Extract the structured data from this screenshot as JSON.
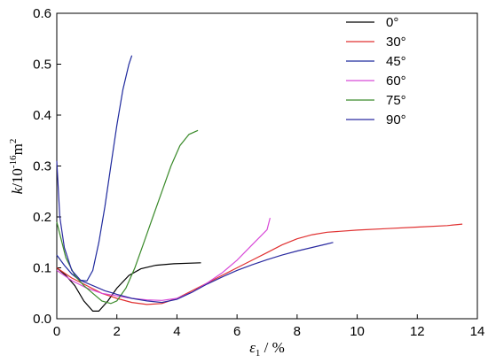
{
  "chart_data": {
    "type": "line",
    "xlim": [
      0,
      14
    ],
    "ylim": [
      0.0,
      0.6
    ],
    "xticks": [
      "0",
      "2",
      "4",
      "6",
      "8",
      "10",
      "12",
      "14"
    ],
    "yticks": [
      "0.0",
      "0.1",
      "0.2",
      "0.3",
      "0.4",
      "0.5",
      "0.6"
    ],
    "xlabel": {
      "symbol": "ε",
      "sub": "1",
      "unit": " / %"
    },
    "ylabel": {
      "symbol": "k",
      "unit_a": "/10",
      "sup1": "-16",
      "unit_b": "m",
      "sup2": "2"
    },
    "grid": false,
    "legend_position": "top-right",
    "series": [
      {
        "name": "0°",
        "color": "#000000",
        "points": [
          [
            0,
            0.1
          ],
          [
            0.3,
            0.085
          ],
          [
            0.6,
            0.065
          ],
          [
            0.9,
            0.035
          ],
          [
            1.2,
            0.015
          ],
          [
            1.4,
            0.015
          ],
          [
            1.7,
            0.035
          ],
          [
            2.0,
            0.06
          ],
          [
            2.4,
            0.085
          ],
          [
            2.8,
            0.098
          ],
          [
            3.3,
            0.105
          ],
          [
            3.9,
            0.108
          ],
          [
            4.8,
            0.11
          ]
        ]
      },
      {
        "name": "30°",
        "color": "#e03030",
        "points": [
          [
            0,
            0.1
          ],
          [
            0.5,
            0.08
          ],
          [
            1.0,
            0.065
          ],
          [
            1.5,
            0.05
          ],
          [
            2.0,
            0.04
          ],
          [
            2.5,
            0.032
          ],
          [
            3.0,
            0.028
          ],
          [
            3.5,
            0.03
          ],
          [
            4.0,
            0.04
          ],
          [
            4.5,
            0.055
          ],
          [
            5.0,
            0.07
          ],
          [
            5.5,
            0.085
          ],
          [
            6.0,
            0.1
          ],
          [
            6.5,
            0.115
          ],
          [
            7.0,
            0.13
          ],
          [
            7.5,
            0.145
          ],
          [
            8.0,
            0.157
          ],
          [
            8.5,
            0.165
          ],
          [
            9.0,
            0.17
          ],
          [
            10.0,
            0.174
          ],
          [
            11.0,
            0.177
          ],
          [
            12.0,
            0.18
          ],
          [
            13.0,
            0.183
          ],
          [
            13.5,
            0.186
          ]
        ]
      },
      {
        "name": "45°",
        "color": "#1f2a9e",
        "points": [
          [
            0,
            0.125
          ],
          [
            0.25,
            0.105
          ],
          [
            0.5,
            0.088
          ],
          [
            0.75,
            0.076
          ],
          [
            1.0,
            0.074
          ],
          [
            1.2,
            0.095
          ],
          [
            1.4,
            0.15
          ],
          [
            1.6,
            0.22
          ],
          [
            1.8,
            0.3
          ],
          [
            2.0,
            0.38
          ],
          [
            2.2,
            0.45
          ],
          [
            2.4,
            0.5
          ],
          [
            2.5,
            0.517
          ]
        ]
      },
      {
        "name": "60°",
        "color": "#d84ad8",
        "points": [
          [
            0,
            0.095
          ],
          [
            0.5,
            0.075
          ],
          [
            1.0,
            0.06
          ],
          [
            1.5,
            0.05
          ],
          [
            2.0,
            0.045
          ],
          [
            2.5,
            0.04
          ],
          [
            3.0,
            0.037
          ],
          [
            3.5,
            0.036
          ],
          [
            4.0,
            0.04
          ],
          [
            4.5,
            0.052
          ],
          [
            5.0,
            0.07
          ],
          [
            5.5,
            0.09
          ],
          [
            6.0,
            0.115
          ],
          [
            6.5,
            0.145
          ],
          [
            7.0,
            0.175
          ],
          [
            7.1,
            0.198
          ]
        ]
      },
      {
        "name": "75°",
        "color": "#3a8a2a",
        "points": [
          [
            0,
            0.19
          ],
          [
            0.3,
            0.12
          ],
          [
            0.6,
            0.085
          ],
          [
            0.9,
            0.065
          ],
          [
            1.2,
            0.05
          ],
          [
            1.5,
            0.035
          ],
          [
            1.8,
            0.03
          ],
          [
            2.0,
            0.035
          ],
          [
            2.3,
            0.06
          ],
          [
            2.6,
            0.1
          ],
          [
            2.9,
            0.15
          ],
          [
            3.2,
            0.2
          ],
          [
            3.5,
            0.25
          ],
          [
            3.8,
            0.3
          ],
          [
            4.1,
            0.34
          ],
          [
            4.4,
            0.362
          ],
          [
            4.7,
            0.37
          ]
        ]
      },
      {
        "name": "90°",
        "color": "#2a2aa0",
        "points": [
          [
            0,
            0.31
          ],
          [
            0.1,
            0.2
          ],
          [
            0.25,
            0.14
          ],
          [
            0.5,
            0.095
          ],
          [
            0.8,
            0.075
          ],
          [
            1.2,
            0.065
          ],
          [
            1.6,
            0.055
          ],
          [
            2.0,
            0.048
          ],
          [
            2.5,
            0.04
          ],
          [
            3.0,
            0.035
          ],
          [
            3.5,
            0.032
          ],
          [
            4.0,
            0.038
          ],
          [
            4.5,
            0.052
          ],
          [
            5.0,
            0.068
          ],
          [
            5.5,
            0.082
          ],
          [
            6.0,
            0.095
          ],
          [
            6.5,
            0.106
          ],
          [
            7.0,
            0.116
          ],
          [
            7.5,
            0.125
          ],
          [
            8.0,
            0.133
          ],
          [
            8.5,
            0.14
          ],
          [
            9.0,
            0.147
          ],
          [
            9.2,
            0.15
          ]
        ]
      }
    ]
  }
}
